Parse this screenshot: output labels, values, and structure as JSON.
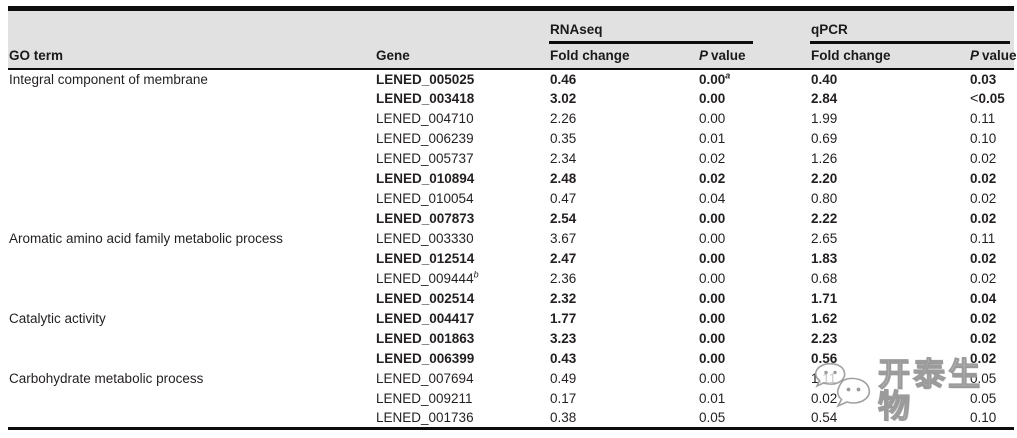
{
  "table": {
    "group_headers": [
      "RNAseq",
      "qPCR"
    ],
    "columns": {
      "go_term": "GO term",
      "gene": "Gene",
      "fold_change": "Fold change",
      "p_italic": "P",
      "p_word": "value"
    },
    "rows": [
      {
        "go": "Integral component of membrane",
        "gene": "LENED_005025",
        "bold": true,
        "rna_fc": "0.46",
        "rna_p": "0.00",
        "rna_p_sup": "a",
        "qpcr_fc": "0.40",
        "qpcr_p": "0.03"
      },
      {
        "go": "",
        "gene": "LENED_003418",
        "bold": true,
        "rna_fc": "3.02",
        "rna_p": "0.00",
        "qpcr_fc": "2.84",
        "qpcr_p": "<0.05"
      },
      {
        "go": "",
        "gene": "LENED_004710",
        "bold": false,
        "rna_fc": "2.26",
        "rna_p": "0.00",
        "qpcr_fc": "1.99",
        "qpcr_p": "0.11"
      },
      {
        "go": "",
        "gene": "LENED_006239",
        "bold": false,
        "rna_fc": "0.35",
        "rna_p": "0.01",
        "qpcr_fc": "0.69",
        "qpcr_p": "0.10"
      },
      {
        "go": "",
        "gene": "LENED_005737",
        "bold": false,
        "rna_fc": "2.34",
        "rna_p": "0.02",
        "qpcr_fc": "1.26",
        "qpcr_p": "0.02"
      },
      {
        "go": "",
        "gene": "LENED_010894",
        "bold": true,
        "rna_fc": "2.48",
        "rna_p": "0.02",
        "qpcr_fc": "2.20",
        "qpcr_p": "0.02"
      },
      {
        "go": "",
        "gene": "LENED_010054",
        "bold": false,
        "rna_fc": "0.47",
        "rna_p": "0.04",
        "qpcr_fc": "0.80",
        "qpcr_p": "0.02"
      },
      {
        "go": "",
        "gene": "LENED_007873",
        "bold": true,
        "rna_fc": "2.54",
        "rna_p": "0.00",
        "qpcr_fc": "2.22",
        "qpcr_p": "0.02"
      },
      {
        "go": "Aromatic amino acid family metabolic process",
        "gene": "LENED_003330",
        "bold": false,
        "rna_fc": "3.67",
        "rna_p": "0.00",
        "qpcr_fc": "2.65",
        "qpcr_p": "0.11"
      },
      {
        "go": "",
        "gene": "LENED_012514",
        "bold": true,
        "rna_fc": "2.47",
        "rna_p": "0.00",
        "qpcr_fc": "1.83",
        "qpcr_p": "0.02"
      },
      {
        "go": "",
        "gene": "LENED_009444",
        "gene_sup": "b",
        "bold": false,
        "rna_fc": "2.36",
        "rna_p": "0.00",
        "qpcr_fc": "0.68",
        "qpcr_p": "0.02"
      },
      {
        "go": "",
        "gene": "LENED_002514",
        "bold": true,
        "rna_fc": "2.32",
        "rna_p": "0.00",
        "qpcr_fc": "1.71",
        "qpcr_p": "0.04"
      },
      {
        "go": "Catalytic activity",
        "gene": "LENED_004417",
        "bold": true,
        "rna_fc": "1.77",
        "rna_p": "0.00",
        "qpcr_fc": "1.62",
        "qpcr_p": "0.02"
      },
      {
        "go": "",
        "gene": "LENED_001863",
        "bold": true,
        "rna_fc": "3.23",
        "rna_p": "0.00",
        "qpcr_fc": "2.23",
        "qpcr_p": "0.02"
      },
      {
        "go": "",
        "gene": "LENED_006399",
        "bold": true,
        "rna_fc": "0.43",
        "rna_p": "0.00",
        "qpcr_fc": "0.56",
        "qpcr_p": "0.02"
      },
      {
        "go": "Carbohydrate metabolic process",
        "gene": "LENED_007694",
        "bold": false,
        "rna_fc": "0.49",
        "rna_p": "0.00",
        "qpcr_fc": "1.11",
        "qpcr_p": "0.05"
      },
      {
        "go": "",
        "gene": "LENED_009211",
        "bold": false,
        "rna_fc": "0.17",
        "rna_p": "0.01",
        "qpcr_fc": "0.02",
        "qpcr_p": "0.05"
      },
      {
        "go": "",
        "gene": "LENED_001736",
        "bold": false,
        "rna_fc": "0.38",
        "rna_p": "0.05",
        "qpcr_fc": "0.54",
        "qpcr_p": "0.10"
      }
    ]
  },
  "watermark": {
    "text": "开泰生物"
  },
  "colors": {
    "header_bg": "#e1e1e1",
    "rule_black": "#0d0d0d",
    "body_text": "#231f20",
    "watermark_gray": "#919191"
  }
}
